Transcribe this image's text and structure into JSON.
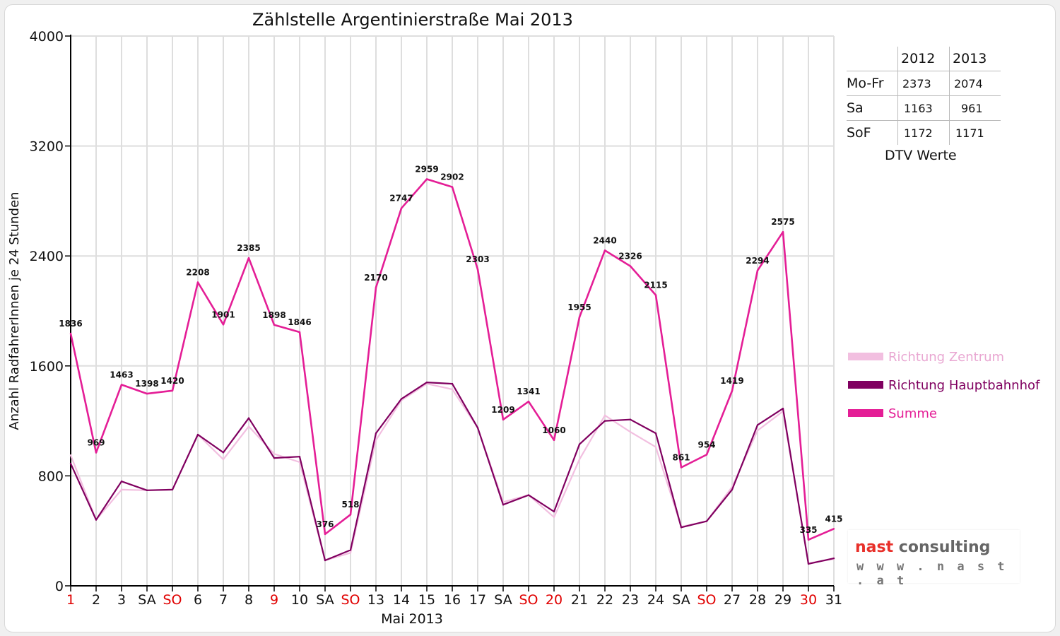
{
  "chart_data": {
    "type": "line",
    "title": "Zählstelle Argentinierstraße Mai 2013",
    "xlabel": "Mai 2013",
    "ylabel": "Anzahl RadfahrerInnen je 24 Stunden",
    "ylim": [
      0,
      4000
    ],
    "yticks": [
      0,
      800,
      1600,
      2400,
      3200,
      4000
    ],
    "grid": true,
    "legend_position": "right",
    "categories": [
      "1",
      "2",
      "3",
      "SA",
      "SO",
      "6",
      "7",
      "8",
      "9",
      "10",
      "SA",
      "SO",
      "13",
      "14",
      "15",
      "16",
      "17",
      "SA",
      "SO",
      "20",
      "21",
      "22",
      "23",
      "24",
      "SA",
      "SO",
      "27",
      "28",
      "29",
      "30",
      "31"
    ],
    "red_categories": [
      0,
      4,
      8,
      11,
      18,
      19,
      25,
      29
    ],
    "series": [
      {
        "name": "Richtung Zentrum",
        "color": "#f2bfe0",
        "values": [
          950,
          480,
          700,
          695,
          700,
          1100,
          920,
          1160,
          960,
          900,
          185,
          240,
          1060,
          1350,
          1470,
          1430,
          1150,
          610,
          660,
          500,
          920,
          1240,
          1120,
          1010,
          430,
          470,
          720,
          1130,
          1270,
          165,
          195
        ]
      },
      {
        "name": "Richtung Hauptbahnhof",
        "color": "#800060",
        "values": [
          890,
          480,
          760,
          695,
          700,
          1100,
          970,
          1220,
          930,
          940,
          185,
          260,
          1110,
          1360,
          1480,
          1470,
          1150,
          590,
          660,
          540,
          1030,
          1200,
          1210,
          1110,
          425,
          470,
          700,
          1170,
          1290,
          160,
          200
        ]
      },
      {
        "name": "Summe",
        "color": "#e41e96",
        "values": [
          1836,
          969,
          1463,
          1398,
          1420,
          2208,
          1901,
          2385,
          1898,
          1846,
          376,
          518,
          2170,
          2747,
          2959,
          2902,
          2303,
          1209,
          1341,
          1060,
          1955,
          2440,
          2326,
          2115,
          861,
          954,
          1419,
          2294,
          2575,
          335,
          415
        ]
      }
    ],
    "data_labels": [
      "1836",
      "969",
      "1463",
      "1398",
      "1420",
      "2208",
      "1901",
      "2385",
      "1898",
      "1846",
      "376",
      "518",
      "2170",
      "2747",
      "2959",
      "2902",
      "2303",
      "1209",
      "1341",
      "1060",
      "1955",
      "2440",
      "2326",
      "2115",
      "861",
      "954",
      "1419",
      "2294",
      "2575",
      "335",
      "415"
    ]
  },
  "dtv_table": {
    "headers": [
      "",
      "2012",
      "2013"
    ],
    "rows": [
      {
        "label": "Mo-Fr",
        "v2012": "2373",
        "v2013": "2074"
      },
      {
        "label": "Sa",
        "v2012": "1163",
        "v2013": "961"
      },
      {
        "label": "SoF",
        "v2012": "1172",
        "v2013": "1171"
      }
    ],
    "caption": "DTV Werte"
  },
  "logo": {
    "word1": "nast",
    "word2": "consulting",
    "url": "w w w . n a s t . a t",
    "color_red": "#e8302a",
    "color_grey": "#666666"
  }
}
